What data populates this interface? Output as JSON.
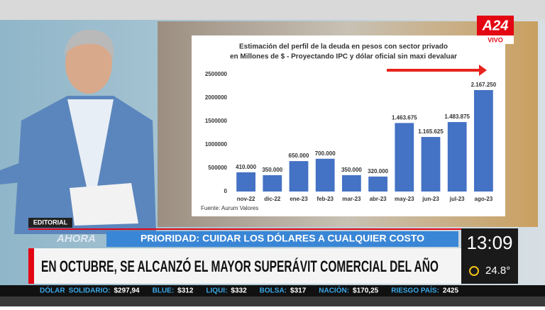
{
  "logo": {
    "brand": "A24",
    "live": "VIVO"
  },
  "chart_data": {
    "type": "bar",
    "title": "Estimación del perfil de la deuda en pesos con sector privado",
    "subtitle": "en Millones de $ - Proyectando IPC y dólar oficial sin maxi devaluar",
    "categories": [
      "nov-22",
      "dic-22",
      "ene-23",
      "feb-23",
      "mar-23",
      "abr-23",
      "may-23",
      "jun-23",
      "jul-23",
      "ago-23"
    ],
    "values": [
      410000,
      350000,
      650000,
      700000,
      350000,
      320000,
      1463675,
      1165625,
      1483875,
      2167250
    ],
    "value_labels": [
      "410.000",
      "350.000",
      "650.000",
      "700.000",
      "350.000",
      "320.000",
      "1.463.675",
      "1.165.625",
      "1.483.875",
      "2.167.250"
    ],
    "color": "#4472c4",
    "ylim": [
      0,
      2500000
    ],
    "yticks": [
      0,
      500000,
      1000000,
      1500000,
      2000000,
      2500000
    ],
    "grid": false,
    "source": "Fuente: Aurum Valores"
  },
  "section": "EDITORIAL",
  "now": "AHORA",
  "topic": "PRIORIDAD: CUIDAR LOS DÓLARES A CUALQUIER COSTO",
  "headline": "EN OCTUBRE, SE ALCANZÓ EL MAYOR SUPERÁVIT COMERCIAL DEL AÑO",
  "clock": "13:09",
  "temperature": "24.8°",
  "ticker": [
    {
      "label": "DÓLAR",
      "value": ""
    },
    {
      "label": "SOLIDARIO:",
      "value": "$297,94"
    },
    {
      "label": "BLUE:",
      "value": "$312"
    },
    {
      "label": "LIQUI:",
      "value": "$332"
    },
    {
      "label": "BOLSA:",
      "value": "$317"
    },
    {
      "label": "NACIÓN:",
      "value": "$170,25"
    },
    {
      "label": "RIESGO PAÍS:",
      "value": "2425"
    }
  ]
}
